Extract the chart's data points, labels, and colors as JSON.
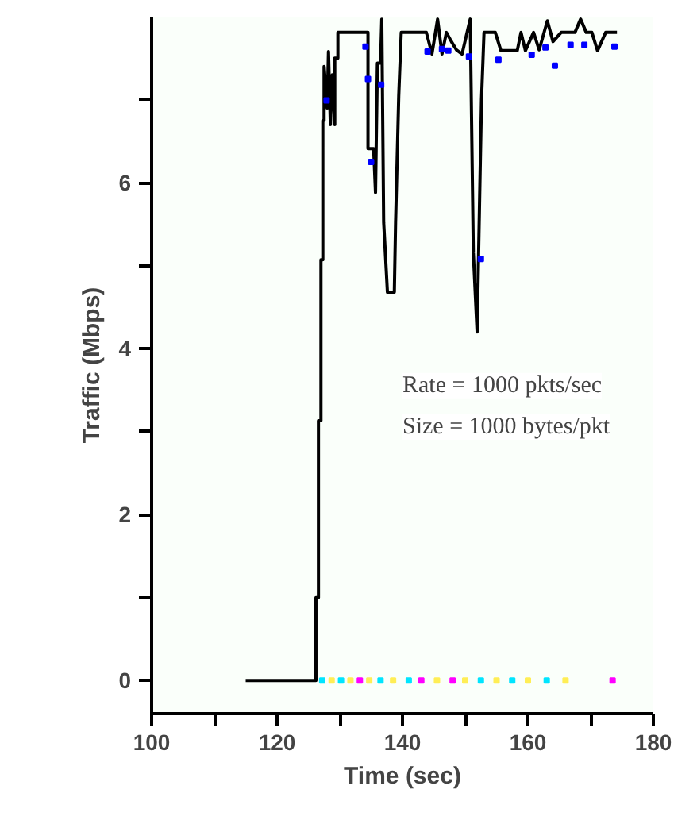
{
  "chart_data": {
    "type": "line",
    "xlabel": "Time (sec)",
    "ylabel": "Traffic (Mbps)",
    "annotations": [
      "Rate = 1000 pkts/sec",
      "Size = 1000 bytes/pkt"
    ],
    "xlim": [
      100,
      180
    ],
    "ylim": [
      -0.4,
      8
    ],
    "xticks": [
      100,
      {
        "value": 110,
        "label": null
      },
      120,
      {
        "value": 130,
        "label": null
      },
      140,
      {
        "value": 150,
        "label": null
      },
      160,
      {
        "value": 170,
        "label": null
      },
      180
    ],
    "yticks": [
      0,
      {
        "value": 1,
        "label": null
      },
      2,
      {
        "value": 3,
        "label": null
      },
      4,
      {
        "value": 5,
        "label": null
      },
      6,
      {
        "value": 7,
        "label": null
      }
    ],
    "grid": false,
    "series": [
      {
        "color": "#000000",
        "x": [
          115,
          126.2,
          126.2,
          126.6,
          126.6,
          127.0,
          127.0,
          127.3,
          127.3,
          127.5,
          127.5,
          128.0,
          128.2,
          128.5,
          128.8,
          129.2,
          129.2,
          129.7,
          129.7,
          134.5,
          134.5,
          135.4,
          135.7,
          136.0,
          136.5,
          136.7,
          137.0,
          137.6,
          138.7,
          138.9,
          139.4,
          139.8,
          143.8,
          144.7,
          145.6,
          146.3,
          147.0,
          147.8,
          148.6,
          149.5,
          150.3,
          150.8,
          151.3,
          151.9,
          152.6,
          153.0,
          154.8,
          155.7,
          158.3,
          158.9,
          159.6,
          160.9,
          161.8,
          163.1,
          164.0,
          165.3,
          167.5,
          168.4,
          169.3,
          170.2,
          171.1,
          172.4,
          174.2
        ],
        "values": [
          0,
          0,
          1.0,
          1.0,
          3.13,
          3.13,
          5.07,
          5.07,
          6.75,
          6.75,
          7.4,
          6.9,
          7.58,
          6.7,
          7.3,
          6.7,
          7.5,
          7.5,
          7.81,
          7.81,
          6.41,
          6.41,
          5.88,
          7.44,
          7.44,
          7.97,
          5.52,
          4.68,
          4.68,
          5.52,
          7.04,
          7.81,
          7.81,
          7.55,
          7.97,
          7.55,
          7.81,
          7.7,
          7.6,
          7.55,
          7.81,
          7.97,
          5.15,
          4.2,
          7.0,
          7.81,
          7.81,
          7.59,
          7.59,
          7.81,
          7.59,
          7.81,
          7.6,
          7.95,
          7.7,
          7.81,
          7.81,
          7.97,
          7.81,
          7.81,
          7.59,
          7.81,
          7.81
        ]
      },
      {
        "type": "scatter",
        "color": "#0000ff",
        "x": [
          127.9,
          134.1,
          134.5,
          135.0,
          136.6,
          144.0,
          146.3,
          147.3,
          150.6,
          152.5,
          155.3,
          160.6,
          162.8,
          164.3,
          166.8,
          169.0,
          173.8
        ],
        "values": [
          6.99,
          7.64,
          7.25,
          6.25,
          7.18,
          7.58,
          7.61,
          7.59,
          7.52,
          5.08,
          7.48,
          7.54,
          7.63,
          7.41,
          7.66,
          7.66,
          7.64
        ]
      },
      {
        "type": "scatter",
        "colors": [
          "#00e5ff",
          "#ffee55",
          "#00e5ff",
          "#ffee55",
          "#ff00ff",
          "#ffee55",
          "#00e5ff",
          "#ffee55",
          "#00e5ff",
          "#ff00ff",
          "#ffee55",
          "#ff00ff",
          "#ffee55",
          "#00e5ff",
          "#ffee55",
          "#00e5ff",
          "#ffee55",
          "#00e5ff",
          "#ffee55",
          "#ff00ff"
        ],
        "x": [
          127.2,
          128.7,
          130.2,
          131.7,
          133.2,
          134.7,
          136.5,
          138.5,
          141.0,
          143.0,
          145.5,
          148.0,
          150.0,
          152.5,
          155.0,
          157.5,
          160.0,
          163.0,
          166.0,
          173.5
        ],
        "values": [
          0,
          0,
          0,
          0,
          0,
          0,
          0,
          0,
          0,
          0,
          0,
          0,
          0,
          0,
          0,
          0,
          0,
          0,
          0,
          0
        ]
      }
    ]
  }
}
